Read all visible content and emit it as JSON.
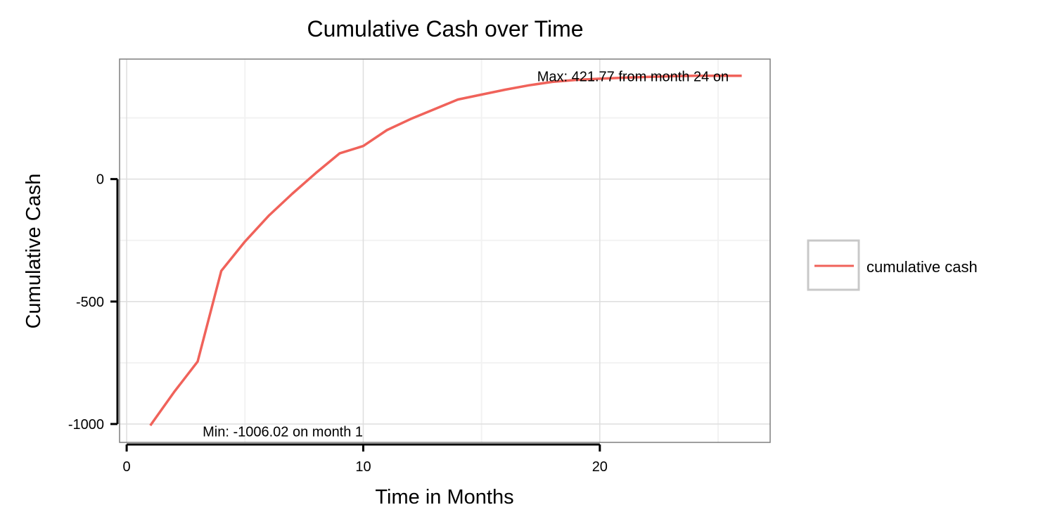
{
  "chart_data": {
    "type": "line",
    "title": "Cumulative Cash over Time",
    "xlabel": "Time in Months",
    "ylabel": "Cumulative Cash",
    "xlim": [
      -0.3,
      27.2
    ],
    "ylim": [
      -1075,
      490
    ],
    "x_ticks": [
      0,
      10,
      20
    ],
    "x_tick_labels": [
      "0",
      "10",
      "20"
    ],
    "x_minor_gridlines": [
      5,
      15,
      25
    ],
    "y_ticks": [
      -1000,
      -500,
      0
    ],
    "y_tick_labels": [
      "-1000",
      "-500",
      "0"
    ],
    "y_minor_gridlines": [
      -750,
      -250,
      250
    ],
    "grid": true,
    "legend_position": "right",
    "series": [
      {
        "name": "cumulative cash",
        "color": "#F0625A",
        "x": [
          1,
          2,
          3,
          4,
          5,
          6,
          7,
          8,
          9,
          10,
          11,
          12,
          13,
          14,
          15,
          16,
          17,
          18,
          19,
          20,
          21,
          22,
          23,
          24,
          25,
          26
        ],
        "y": [
          -1006.02,
          -870,
          -745,
          -375,
          -255,
          -150,
          -60,
          25,
          105,
          135,
          200,
          245,
          285,
          325,
          345,
          365,
          383,
          397,
          405,
          410,
          414,
          417,
          420,
          421.77,
          421.77,
          421.77
        ]
      }
    ],
    "annotations": [
      {
        "text": "Max: 421.77 from month 24 on",
        "x": 21.4,
        "y": 399,
        "anchor": "middle"
      },
      {
        "text": "Min: -1006.02 on month 1",
        "x": 6.6,
        "y": -1050,
        "anchor": "middle"
      }
    ]
  }
}
